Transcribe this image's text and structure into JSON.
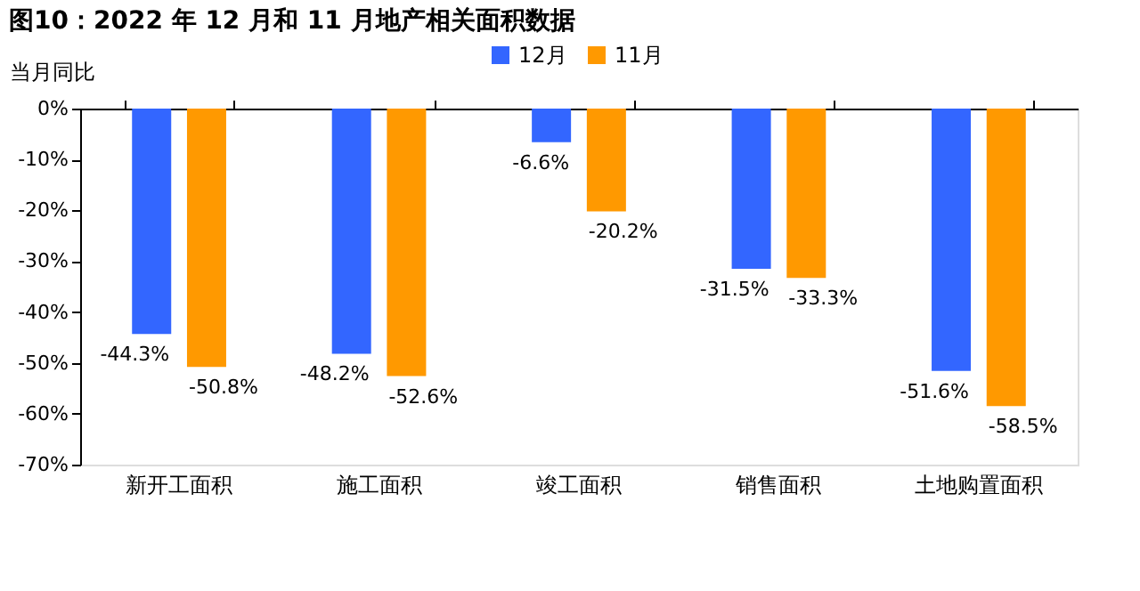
{
  "chart_data": {
    "type": "bar",
    "title": "图10：2022 年 12 月和 11 月地产相关面积数据",
    "ylabel": "当月同比",
    "categories": [
      "新开工面积",
      "施工面积",
      "竣工面积",
      "销售面积",
      "土地购置面积"
    ],
    "series": [
      {
        "name": "12月",
        "color": "#3366ff",
        "values": [
          -44.3,
          -48.2,
          -6.6,
          -31.5,
          -51.6
        ],
        "value_labels": [
          "-44.3%",
          "-48.2%",
          "-6.6%",
          "-31.5%",
          "-51.6%"
        ]
      },
      {
        "name": "11月",
        "color": "#ff9900",
        "values": [
          -50.8,
          -52.6,
          -20.2,
          -33.3,
          -58.5
        ],
        "value_labels": [
          "-50.8%",
          "-52.6%",
          "-20.2%",
          "-33.3%",
          "-58.5%"
        ]
      }
    ],
    "ylim": [
      -70,
      0
    ],
    "yticks": [
      {
        "value": 0,
        "label": "0%"
      },
      {
        "value": -10,
        "label": "-10%"
      },
      {
        "value": -20,
        "label": "-20%"
      },
      {
        "value": -30,
        "label": "-30%"
      },
      {
        "value": -40,
        "label": "-40%"
      },
      {
        "value": -50,
        "label": "-50%"
      },
      {
        "value": -60,
        "label": "-60%"
      },
      {
        "value": -70,
        "label": "-70%"
      }
    ],
    "legend": "top",
    "grid": false
  }
}
